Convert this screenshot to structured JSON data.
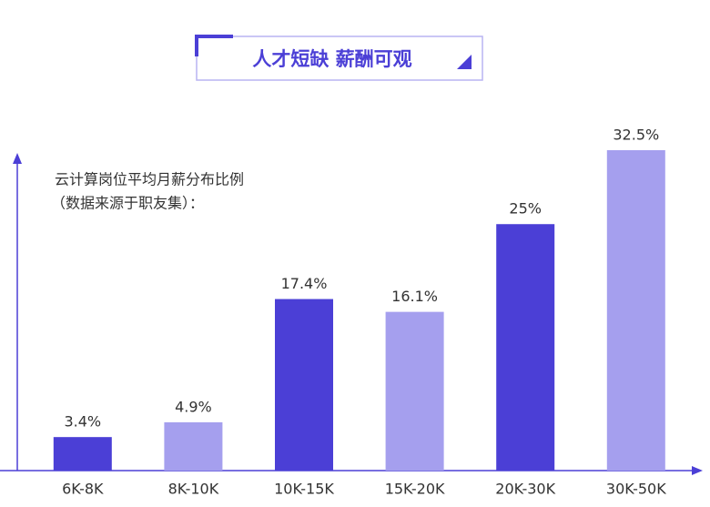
{
  "chart_data": {
    "type": "bar",
    "title": "人才短缺 薪酬可观",
    "annotations": [
      "云计算岗位平均月薪分布比例",
      "（数据来源于职友集）："
    ],
    "categories": [
      "6K-8K",
      "8K-10K",
      "10K-15K",
      "15K-20K",
      "20K-30K",
      "30K-50K"
    ],
    "values": [
      3.4,
      4.9,
      17.4,
      16.1,
      25,
      32.5
    ],
    "value_labels": [
      "3.4%",
      "4.9%",
      "17.4%",
      "16.1%",
      "25%",
      "32.5%"
    ],
    "colors": [
      "#4b3fd6",
      "#a59fee",
      "#4b3fd6",
      "#a59fee",
      "#4b3fd6",
      "#a59fee"
    ]
  }
}
